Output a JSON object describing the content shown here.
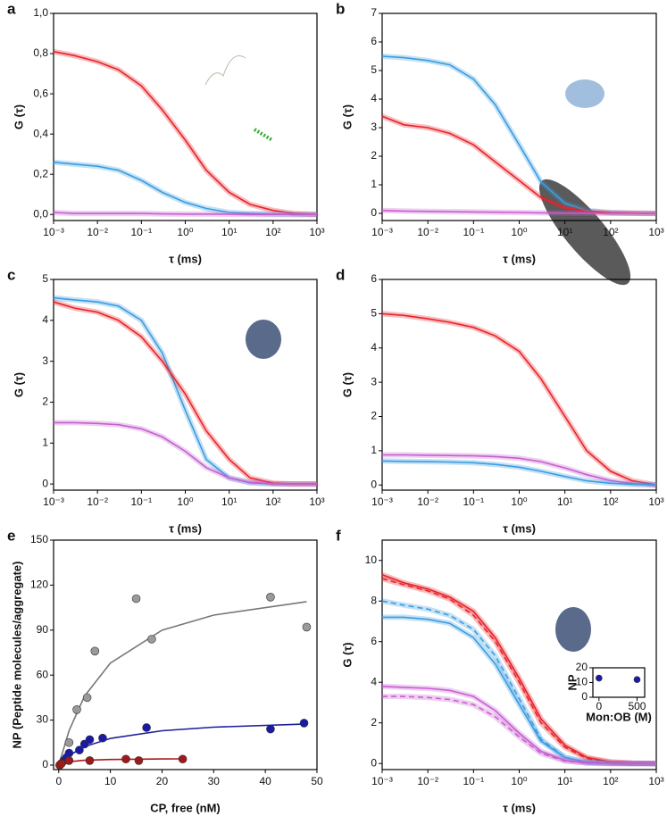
{
  "chart_data": [
    {
      "panel": "a",
      "type": "line",
      "xlabel": "τ (ms)",
      "ylabel": "G (τ)",
      "xlog": true,
      "x": [
        0.001,
        0.003,
        0.01,
        0.03,
        0.1,
        0.3,
        1,
        3,
        10,
        30,
        100,
        300,
        1000
      ],
      "xlim": [
        0.001,
        1000
      ],
      "xticks": [
        {
          "value": 0.001,
          "label": "10⁻³"
        },
        {
          "value": 0.01,
          "label": "10⁻²"
        },
        {
          "value": 0.1,
          "label": "10⁻¹"
        },
        {
          "value": 1,
          "label": "10⁰"
        },
        {
          "value": 10,
          "label": "10¹"
        },
        {
          "value": 100,
          "label": "10²"
        },
        {
          "value": 1000,
          "label": "10³"
        }
      ],
      "ylim": [
        -0.03,
        1.0
      ],
      "yticks": [
        {
          "value": 0,
          "label": "0,0"
        },
        {
          "value": 0.2,
          "label": "0,2"
        },
        {
          "value": 0.4,
          "label": "0,4"
        },
        {
          "value": 0.6,
          "label": "0,6"
        },
        {
          "value": 0.8,
          "label": "0,8"
        },
        {
          "value": 1.0,
          "label": "1,0"
        }
      ],
      "series": [
        {
          "color": "#e8232a",
          "values": [
            0.81,
            0.79,
            0.76,
            0.72,
            0.64,
            0.52,
            0.37,
            0.22,
            0.11,
            0.05,
            0.02,
            0.005,
            0
          ]
        },
        {
          "color": "#3a9de0",
          "values": [
            0.26,
            0.25,
            0.24,
            0.22,
            0.17,
            0.11,
            0.06,
            0.03,
            0.01,
            0.005,
            0.002,
            0,
            0
          ]
        },
        {
          "color": "#c65fd0",
          "values": [
            0.01,
            0.005,
            0.005,
            0.005,
            0.005,
            0.003,
            0.002,
            0.002,
            0.001,
            0,
            0,
            0,
            0
          ]
        }
      ]
    },
    {
      "panel": "b",
      "type": "line",
      "xlabel": "τ (ms)",
      "ylabel": "G (τ)",
      "xlog": true,
      "x": [
        0.001,
        0.003,
        0.01,
        0.03,
        0.1,
        0.3,
        1,
        3,
        10,
        30,
        100,
        300,
        1000
      ],
      "xlim": [
        0.001,
        1000
      ],
      "xticks": [
        {
          "value": 0.001,
          "label": "10⁻³"
        },
        {
          "value": 0.01,
          "label": "10⁻²"
        },
        {
          "value": 0.1,
          "label": "10⁻¹"
        },
        {
          "value": 1,
          "label": "10⁰"
        },
        {
          "value": 10,
          "label": "10¹"
        },
        {
          "value": 100,
          "label": "10²"
        },
        {
          "value": 1000,
          "label": "10³"
        }
      ],
      "ylim": [
        -0.25,
        7
      ],
      "yticks": [
        0,
        1,
        2,
        3,
        4,
        5,
        6,
        7
      ],
      "series": [
        {
          "color": "#3a9de0",
          "values": [
            5.5,
            5.45,
            5.35,
            5.2,
            4.7,
            3.8,
            2.4,
            1.1,
            0.35,
            0.1,
            0.03,
            0.01,
            0
          ]
        },
        {
          "color": "#e8232a",
          "values": [
            3.4,
            3.1,
            3.0,
            2.8,
            2.4,
            1.8,
            1.15,
            0.55,
            0.2,
            0.07,
            0.02,
            0.01,
            0
          ]
        },
        {
          "color": "#c65fd0",
          "values": [
            0.1,
            0.08,
            0.07,
            0.06,
            0.05,
            0.04,
            0.03,
            0.02,
            0.01,
            0,
            0,
            0,
            0
          ]
        }
      ]
    },
    {
      "panel": "c",
      "type": "line",
      "xlabel": "τ (ms)",
      "ylabel": "G (τ)",
      "xlog": true,
      "x": [
        0.001,
        0.003,
        0.01,
        0.03,
        0.1,
        0.3,
        1,
        3,
        10,
        30,
        100,
        300,
        1000
      ],
      "xlim": [
        0.001,
        1000
      ],
      "xticks": [
        {
          "value": 0.001,
          "label": "10⁻³"
        },
        {
          "value": 0.01,
          "label": "10⁻²"
        },
        {
          "value": 0.1,
          "label": "10⁻¹"
        },
        {
          "value": 1,
          "label": "10⁰"
        },
        {
          "value": 10,
          "label": "10¹"
        },
        {
          "value": 100,
          "label": "10²"
        },
        {
          "value": 1000,
          "label": "10³"
        }
      ],
      "ylim": [
        -0.15,
        5
      ],
      "yticks": [
        0,
        1,
        2,
        3,
        4,
        5
      ],
      "series": [
        {
          "color": "#3a9de0",
          "values": [
            4.55,
            4.5,
            4.45,
            4.35,
            4.0,
            3.2,
            1.8,
            0.6,
            0.15,
            0.03,
            0,
            0,
            0
          ]
        },
        {
          "color": "#e8232a",
          "values": [
            4.45,
            4.3,
            4.2,
            4.0,
            3.6,
            3.0,
            2.2,
            1.3,
            0.6,
            0.15,
            0.02,
            0,
            0
          ]
        },
        {
          "color": "#c65fd0",
          "values": [
            1.5,
            1.5,
            1.48,
            1.45,
            1.35,
            1.15,
            0.8,
            0.4,
            0.15,
            0.04,
            0.01,
            0,
            0
          ]
        }
      ]
    },
    {
      "panel": "d",
      "type": "line",
      "xlabel": "τ (ms)",
      "ylabel": "G (τ)",
      "xlog": true,
      "x": [
        0.001,
        0.003,
        0.01,
        0.03,
        0.1,
        0.3,
        1,
        3,
        10,
        30,
        100,
        300,
        1000
      ],
      "xlim": [
        0.001,
        1000
      ],
      "xticks": [
        {
          "value": 0.001,
          "label": "10⁻³"
        },
        {
          "value": 0.01,
          "label": "10⁻²"
        },
        {
          "value": 0.1,
          "label": "10⁻¹"
        },
        {
          "value": 1,
          "label": "10⁰"
        },
        {
          "value": 10,
          "label": "10¹"
        },
        {
          "value": 100,
          "label": "10²"
        },
        {
          "value": 1000,
          "label": "10³"
        }
      ],
      "ylim": [
        -0.15,
        6
      ],
      "yticks": [
        0,
        1,
        2,
        3,
        4,
        5,
        6
      ],
      "series": [
        {
          "color": "#e8232a",
          "values": [
            5.0,
            4.95,
            4.85,
            4.75,
            4.6,
            4.35,
            3.9,
            3.1,
            2.0,
            1.0,
            0.4,
            0.12,
            0
          ]
        },
        {
          "color": "#c65fd0",
          "values": [
            0.88,
            0.88,
            0.87,
            0.86,
            0.85,
            0.83,
            0.78,
            0.68,
            0.5,
            0.3,
            0.13,
            0.04,
            0
          ]
        },
        {
          "color": "#3a9de0",
          "values": [
            0.7,
            0.69,
            0.68,
            0.67,
            0.65,
            0.6,
            0.52,
            0.4,
            0.25,
            0.12,
            0.05,
            0.02,
            0
          ]
        }
      ]
    },
    {
      "panel": "e",
      "type": "scatter",
      "xlabel": "CP, free (nM)",
      "ylabel": "NP (Peptide molecules/aggregate)",
      "xlim": [
        -1,
        50
      ],
      "xticks": [
        0,
        10,
        20,
        30,
        40,
        50
      ],
      "ylim": [
        -3,
        150
      ],
      "yticks": [
        0,
        30,
        60,
        90,
        120,
        150
      ],
      "series": [
        {
          "mode": "line",
          "color": "#777777",
          "x": [
            0,
            2,
            5,
            10,
            20,
            30,
            48
          ],
          "values": [
            0,
            23,
            46,
            68,
            90,
            100,
            109
          ]
        },
        {
          "mode": "line",
          "color": "#1c1c9c",
          "x": [
            0,
            2,
            5,
            10,
            20,
            30,
            48
          ],
          "values": [
            0,
            6.4,
            12.3,
            17.8,
            22.9,
            25.3,
            27.4
          ]
        },
        {
          "mode": "line",
          "color": "#a81a1a",
          "x": [
            0,
            2,
            5,
            10,
            20,
            24
          ],
          "values": [
            0,
            2.25,
            3.2,
            3.75,
            4.1,
            4.15
          ]
        },
        {
          "mode": "markers",
          "color": "#9a9a9a",
          "x": [
            0.5,
            1,
            2,
            3.5,
            5.5,
            7,
            15,
            18,
            41,
            48
          ],
          "values": [
            1,
            3,
            15,
            37,
            45,
            76,
            111,
            84,
            112,
            92
          ]
        },
        {
          "mode": "markers",
          "color": "#1a1aa8",
          "x": [
            0.2,
            0.5,
            1,
            1.5,
            2,
            4,
            5,
            6,
            8.5,
            17,
            41,
            47.5
          ],
          "values": [
            0,
            1,
            3,
            5,
            8,
            10,
            14,
            17,
            18,
            25,
            24,
            28
          ]
        },
        {
          "mode": "markers",
          "color": "#a01818",
          "x": [
            0.2,
            0.5,
            2,
            6,
            13,
            15.5,
            24
          ],
          "values": [
            0,
            1,
            3,
            3,
            4,
            3,
            4
          ]
        }
      ]
    },
    {
      "panel": "f",
      "type": "line",
      "xlabel": "τ (ms)",
      "ylabel": "G (τ)",
      "xlog": true,
      "x": [
        0.001,
        0.003,
        0.01,
        0.03,
        0.1,
        0.3,
        1,
        3,
        10,
        30,
        100,
        300,
        1000
      ],
      "xlim": [
        0.001,
        1000
      ],
      "xticks": [
        {
          "value": 0.001,
          "label": "10⁻³"
        },
        {
          "value": 0.01,
          "label": "10⁻²"
        },
        {
          "value": 0.1,
          "label": "10⁻¹"
        },
        {
          "value": 1,
          "label": "10⁰"
        },
        {
          "value": 10,
          "label": "10¹"
        },
        {
          "value": 100,
          "label": "10²"
        },
        {
          "value": 1000,
          "label": "10³"
        }
      ],
      "ylim": [
        -0.3,
        11
      ],
      "yticks": [
        0,
        2,
        4,
        6,
        8,
        10
      ],
      "series": [
        {
          "color": "#e8232a",
          "dashed": false,
          "values": [
            9.3,
            8.9,
            8.6,
            8.2,
            7.5,
            6.2,
            4.2,
            2.2,
            0.9,
            0.3,
            0.08,
            0.02,
            0
          ]
        },
        {
          "color": "#e8232a",
          "dashed": true,
          "values": [
            9.1,
            8.8,
            8.5,
            8.1,
            7.3,
            6.0,
            4.0,
            2.0,
            0.8,
            0.25,
            0.06,
            0.01,
            0
          ]
        },
        {
          "color": "#3a9de0",
          "dashed": true,
          "values": [
            8.0,
            7.8,
            7.6,
            7.3,
            6.6,
            5.3,
            3.2,
            1.2,
            0.3,
            0.06,
            0.01,
            0,
            0
          ]
        },
        {
          "color": "#3a9de0",
          "dashed": false,
          "values": [
            7.2,
            7.2,
            7.1,
            6.9,
            6.2,
            4.9,
            2.9,
            1.1,
            0.3,
            0.06,
            0.01,
            0,
            0
          ]
        },
        {
          "color": "#c65fd0",
          "dashed": false,
          "values": [
            3.8,
            3.75,
            3.7,
            3.6,
            3.3,
            2.6,
            1.5,
            0.6,
            0.15,
            0.03,
            0,
            0,
            0
          ]
        },
        {
          "color": "#c65fd0",
          "dashed": true,
          "values": [
            3.3,
            3.3,
            3.25,
            3.15,
            2.9,
            2.3,
            1.3,
            0.5,
            0.12,
            0.02,
            0,
            0,
            0
          ]
        }
      ]
    },
    {
      "type": "scatter",
      "xlabel": "Mon:OB (M)",
      "ylabel": "NP",
      "xlim": [
        -80,
        600
      ],
      "xticks": [
        0,
        500
      ],
      "ylim": [
        0,
        20
      ],
      "yticks": [
        0,
        10,
        20
      ],
      "series": [
        {
          "mode": "markers",
          "color": "#1a1aa8",
          "x": [
            0,
            500
          ],
          "values": [
            13,
            12
          ]
        }
      ]
    }
  ]
}
